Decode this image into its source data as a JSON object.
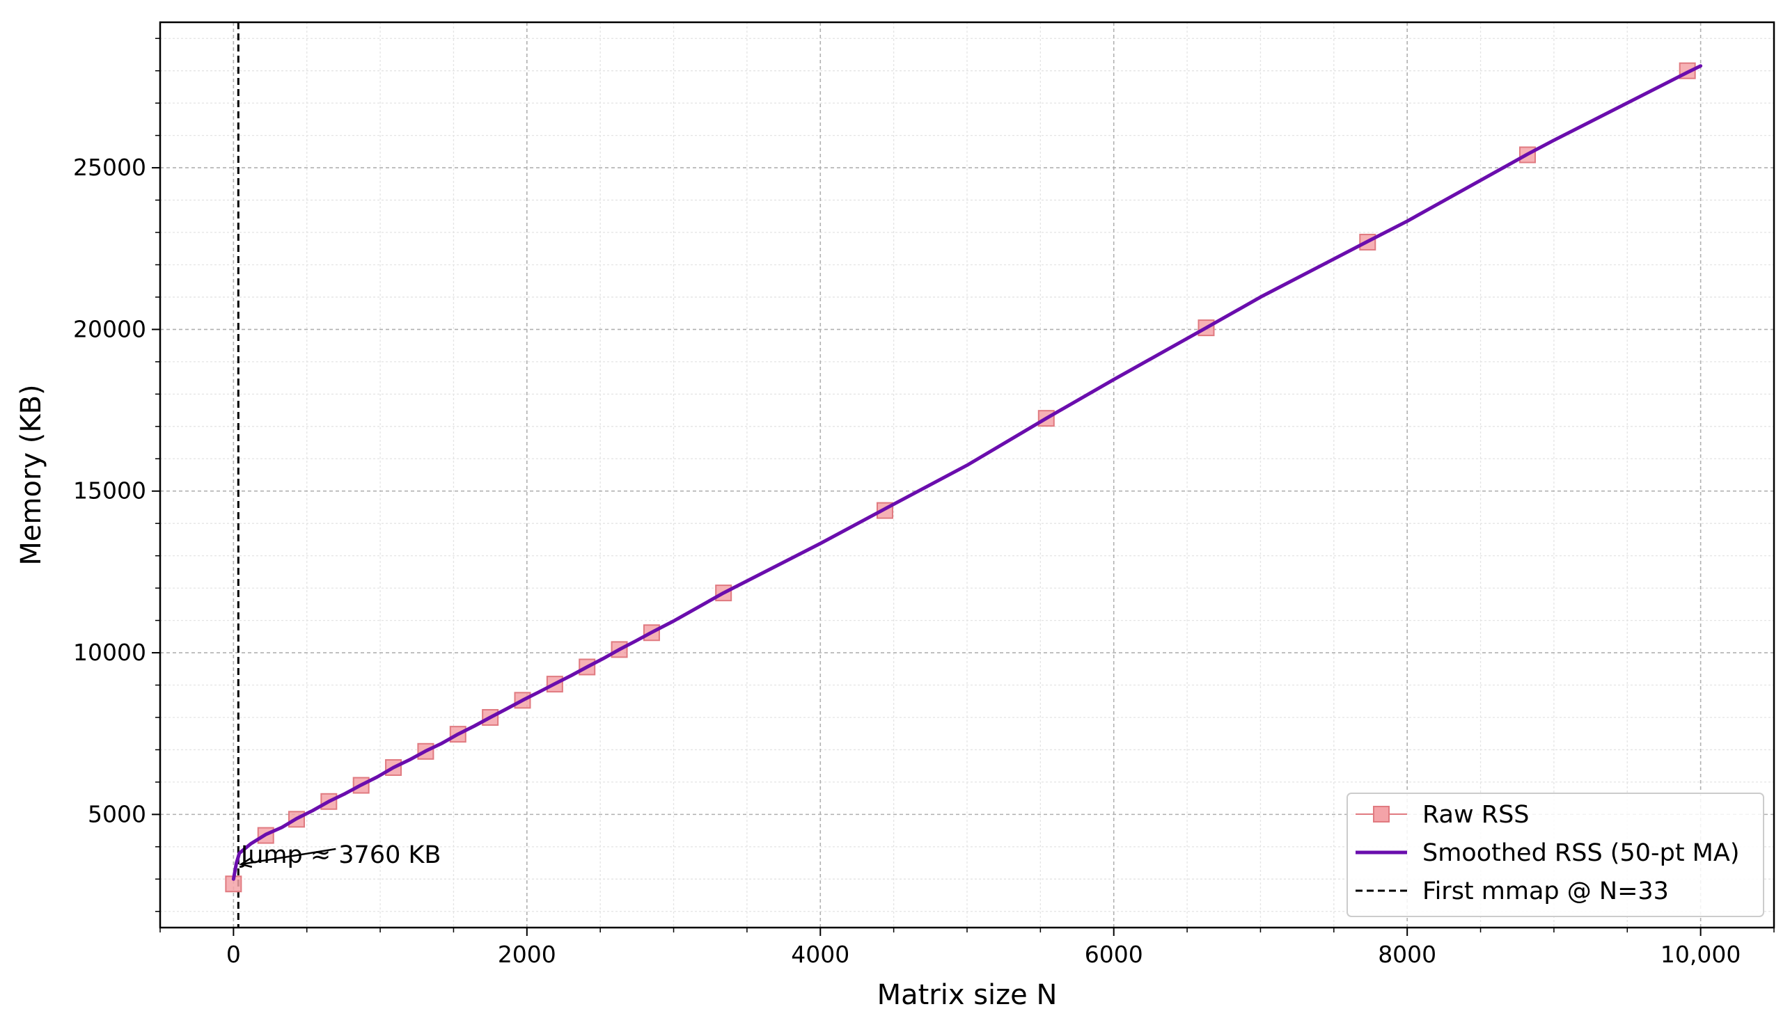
{
  "chart_data": {
    "type": "line",
    "title": "",
    "xlabel": "Matrix size N",
    "ylabel": "Memory (KB)",
    "xlim": [
      -500,
      10500
    ],
    "ylim": [
      1500,
      29500
    ],
    "grid": true,
    "minor_grid": true,
    "legend_position": "bottom-right",
    "x_ticks": [
      {
        "value": 0,
        "label": "0"
      },
      {
        "value": 2000,
        "label": "2000"
      },
      {
        "value": 4000,
        "label": "4000"
      },
      {
        "value": 6000,
        "label": "6000"
      },
      {
        "value": 8000,
        "label": "8000"
      },
      {
        "value": 10000,
        "label": "10,000"
      }
    ],
    "y_ticks": [
      {
        "value": 5000,
        "label": "5000"
      },
      {
        "value": 10000,
        "label": "10000"
      },
      {
        "value": 15000,
        "label": "15000"
      },
      {
        "value": 20000,
        "label": "20000"
      },
      {
        "value": 25000,
        "label": "25000"
      }
    ],
    "series": [
      {
        "name": "Raw RSS",
        "style": "markers",
        "color": "#f4a3a8",
        "edge_color": "#e07a80",
        "points": [
          [
            0,
            2850
          ],
          [
            220,
            4350
          ],
          [
            430,
            4850
          ],
          [
            650,
            5400
          ],
          [
            870,
            5900
          ],
          [
            1090,
            6450
          ],
          [
            1310,
            6950
          ],
          [
            1530,
            7480
          ],
          [
            1750,
            8000
          ],
          [
            1970,
            8530
          ],
          [
            2190,
            9030
          ],
          [
            2410,
            9560
          ],
          [
            2630,
            10100
          ],
          [
            2850,
            10620
          ],
          [
            3340,
            11850
          ],
          [
            4440,
            14400
          ],
          [
            5540,
            17250
          ],
          [
            6630,
            20050
          ],
          [
            7730,
            22700
          ],
          [
            8820,
            25400
          ],
          [
            9910,
            28000
          ]
        ]
      },
      {
        "name": "Smoothed RSS (50-pt MA)",
        "style": "line",
        "color": "#6a0dad",
        "points": [
          [
            0,
            3000
          ],
          [
            20,
            3500
          ],
          [
            40,
            3800
          ],
          [
            120,
            4100
          ],
          [
            220,
            4380
          ],
          [
            330,
            4600
          ],
          [
            430,
            4870
          ],
          [
            540,
            5120
          ],
          [
            650,
            5400
          ],
          [
            760,
            5640
          ],
          [
            870,
            5910
          ],
          [
            980,
            6160
          ],
          [
            1090,
            6450
          ],
          [
            1200,
            6690
          ],
          [
            1310,
            6960
          ],
          [
            1420,
            7200
          ],
          [
            1530,
            7480
          ],
          [
            1640,
            7730
          ],
          [
            1750,
            8000
          ],
          [
            1860,
            8260
          ],
          [
            1970,
            8530
          ],
          [
            2080,
            8780
          ],
          [
            2190,
            9040
          ],
          [
            2300,
            9290
          ],
          [
            2410,
            9560
          ],
          [
            2520,
            9820
          ],
          [
            2630,
            10100
          ],
          [
            2740,
            10360
          ],
          [
            2850,
            10630
          ],
          [
            3000,
            10980
          ],
          [
            3340,
            11850
          ],
          [
            4000,
            13380
          ],
          [
            4440,
            14450
          ],
          [
            5000,
            15800
          ],
          [
            5540,
            17250
          ],
          [
            6000,
            18450
          ],
          [
            6630,
            20050
          ],
          [
            7000,
            21000
          ],
          [
            7730,
            22720
          ],
          [
            8000,
            23350
          ],
          [
            8820,
            25420
          ],
          [
            9000,
            25850
          ],
          [
            9910,
            27950
          ],
          [
            10000,
            28150
          ]
        ]
      }
    ],
    "reference_line": {
      "name": "First mmap @ N=33",
      "x": 33,
      "style": "dashed",
      "color": "#000000"
    },
    "annotation": {
      "text": "Jump ≈ 3760 KB",
      "arrow_target": [
        33,
        3760
      ],
      "text_anchor": [
        50,
        3760
      ]
    }
  }
}
